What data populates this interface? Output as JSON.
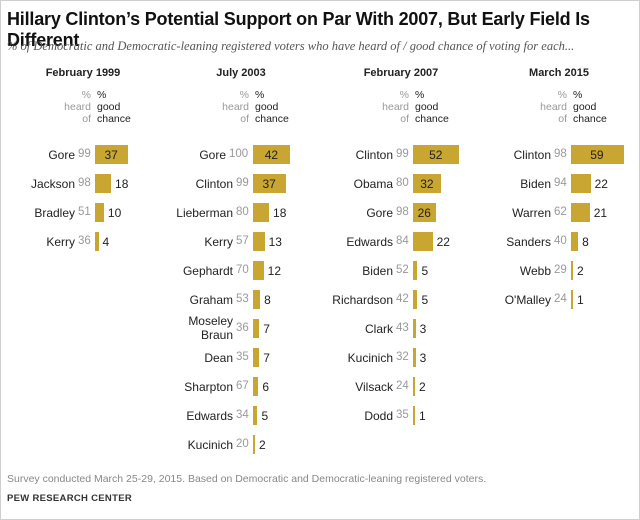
{
  "title": "Hillary Clinton’s Potential Support on Par With 2007, But Early Field Is Different",
  "subtitle": "% of Democratic and Democratic-leaning registered voters who have heard of / good chance of voting for each...",
  "col_heard": "% heard of",
  "col_good": "% good chance",
  "note": "Survey conducted March 25-29, 2015. Based on Democratic and Democratic-leaning registered voters.",
  "source": "PEW RESEARCH CENTER",
  "colors": {
    "bar": "#c9a531",
    "heard_text": "#999999"
  },
  "chart_data": [
    {
      "type": "bar",
      "title": "February 1999",
      "categories": [
        "Gore",
        "Jackson",
        "Bradley",
        "Kerry"
      ],
      "heard_of": [
        99,
        98,
        51,
        36
      ],
      "good_chance": [
        37,
        18,
        10,
        4
      ]
    },
    {
      "type": "bar",
      "title": "July 2003",
      "categories": [
        "Gore",
        "Clinton",
        "Lieberman",
        "Kerry",
        "Gephardt",
        "Graham",
        "Moseley Braun",
        "Dean",
        "Sharpton",
        "Edwards",
        "Kucinich"
      ],
      "heard_of": [
        100,
        99,
        80,
        57,
        70,
        53,
        36,
        35,
        67,
        34,
        20
      ],
      "good_chance": [
        42,
        37,
        18,
        13,
        12,
        8,
        7,
        7,
        6,
        5,
        2
      ]
    },
    {
      "type": "bar",
      "title": "February 2007",
      "categories": [
        "Clinton",
        "Obama",
        "Gore",
        "Edwards",
        "Biden",
        "Richardson",
        "Clark",
        "Kucinich",
        "Vilsack",
        "Dodd"
      ],
      "heard_of": [
        99,
        80,
        98,
        84,
        52,
        42,
        43,
        32,
        24,
        35
      ],
      "good_chance": [
        52,
        32,
        26,
        22,
        5,
        5,
        3,
        3,
        2,
        1
      ]
    },
    {
      "type": "bar",
      "title": "March 2015",
      "categories": [
        "Clinton",
        "Biden",
        "Warren",
        "Sanders",
        "Webb",
        "O'Malley"
      ],
      "heard_of": [
        98,
        94,
        62,
        40,
        29,
        24
      ],
      "good_chance": [
        59,
        22,
        21,
        8,
        2,
        1
      ]
    }
  ]
}
